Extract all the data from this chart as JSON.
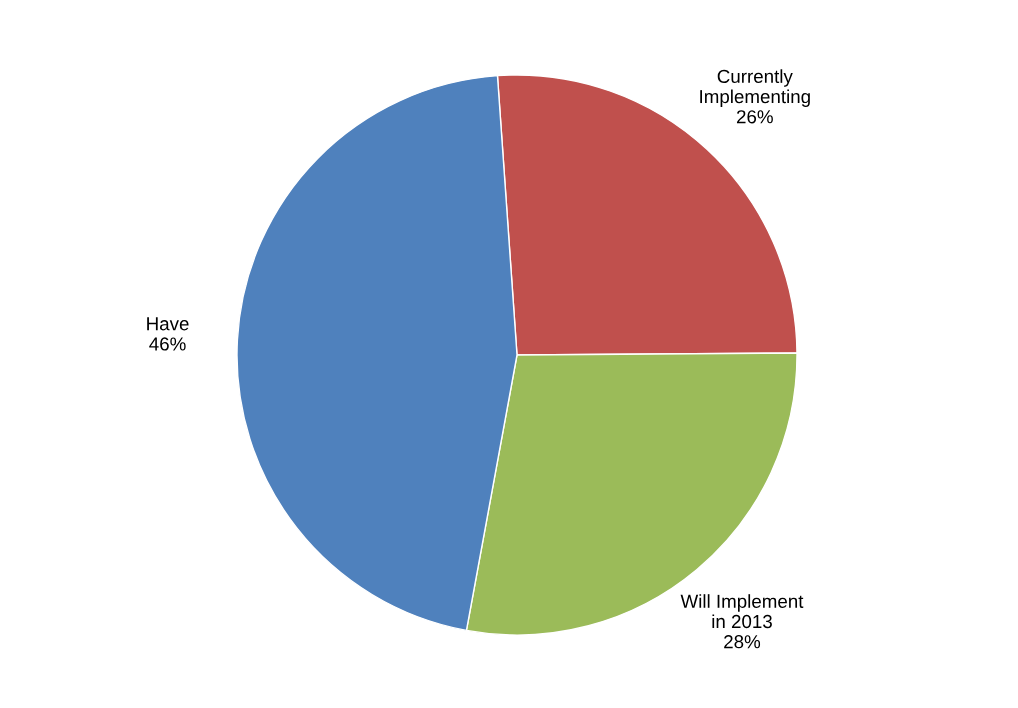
{
  "chart_data": {
    "type": "pie",
    "categories": [
      "Currently\nImplementing",
      "Will Implement\nin 2013",
      "Have"
    ],
    "values": [
      26,
      28,
      46
    ],
    "value_labels": [
      "26%",
      "28%",
      "46%"
    ],
    "colors": [
      "#c0504d",
      "#9bbb59",
      "#4f81bd"
    ],
    "legend": false
  }
}
